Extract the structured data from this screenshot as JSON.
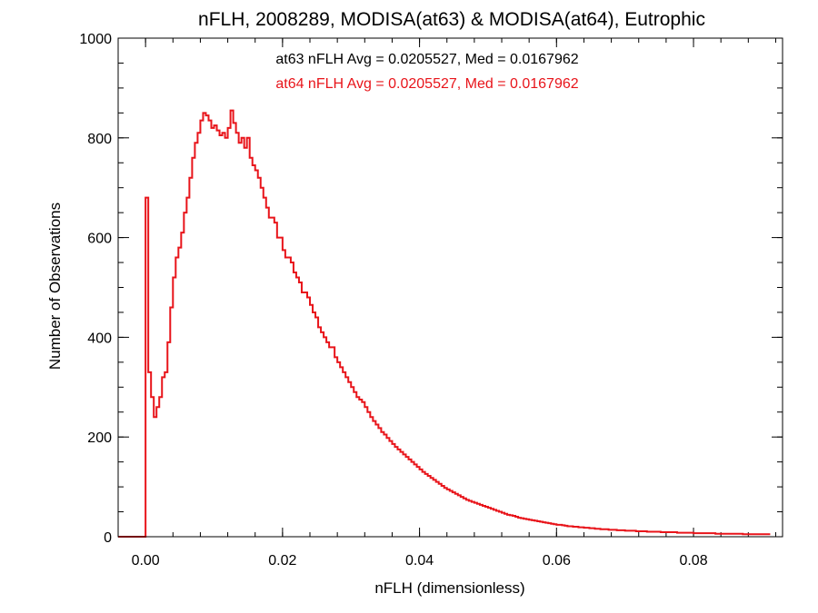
{
  "chart_data": {
    "type": "histogram",
    "title": "nFLH, 2008289, MODISA(at63) & MODISA(at64), Eutrophic",
    "xlabel": "nFLH (dimensionless)",
    "ylabel": "Number of Observations",
    "xlim": [
      -0.004,
      0.093
    ],
    "ylim": [
      0,
      1000
    ],
    "x_ticks": [
      {
        "value": 0.0,
        "label": "0.00"
      },
      {
        "value": 0.02,
        "label": "0.02"
      },
      {
        "value": 0.04,
        "label": "0.04"
      },
      {
        "value": 0.06,
        "label": "0.06"
      },
      {
        "value": 0.08,
        "label": "0.08"
      }
    ],
    "y_ticks": [
      {
        "value": 0,
        "label": "0"
      },
      {
        "value": 200,
        "label": "200"
      },
      {
        "value": 400,
        "label": "400"
      },
      {
        "value": 600,
        "label": "600"
      },
      {
        "value": 800,
        "label": "800"
      },
      {
        "value": 1000,
        "label": "1000"
      }
    ],
    "x_minor_step": 0.004,
    "y_minor_step": 50,
    "grid": false,
    "annotations": [
      {
        "text": "at63 nFLH Avg = 0.0205527, Med = 0.0167962",
        "color": "#000000"
      },
      {
        "text": "at64 nFLH Avg = 0.0205527, Med = 0.0167962",
        "color": "#e8141a"
      }
    ],
    "series": [
      {
        "color": "#e8141a",
        "bin_width": 0.0004,
        "step_x": [
          -0.004,
          0.0,
          0.0004,
          0.0008,
          0.0012,
          0.0016,
          0.002,
          0.0024,
          0.0028,
          0.0032,
          0.0036,
          0.004,
          0.0044,
          0.0048,
          0.0052,
          0.0056,
          0.006,
          0.0064,
          0.0068,
          0.0072,
          0.0076,
          0.008,
          0.0084,
          0.0088,
          0.0092,
          0.0096,
          0.01,
          0.0104,
          0.0108,
          0.0112,
          0.0116,
          0.012,
          0.0124,
          0.0128,
          0.0132,
          0.0136,
          0.014,
          0.0144,
          0.0148,
          0.0152,
          0.0156,
          0.016,
          0.0164,
          0.0168,
          0.0172,
          0.0176,
          0.018,
          0.0184,
          0.0188,
          0.0192,
          0.0196,
          0.02,
          0.0204,
          0.0208,
          0.0212,
          0.0216,
          0.022,
          0.0224,
          0.0228,
          0.0232,
          0.0236,
          0.024,
          0.0244,
          0.0248,
          0.0252,
          0.0256,
          0.026,
          0.0264,
          0.0268,
          0.0272,
          0.0276,
          0.028,
          0.0284,
          0.0288,
          0.0292,
          0.0296,
          0.03,
          0.0304,
          0.0308,
          0.0312,
          0.0316,
          0.032,
          0.0324,
          0.0328,
          0.0332,
          0.0336,
          0.034,
          0.0344,
          0.0348,
          0.0352,
          0.0356,
          0.036,
          0.0364,
          0.0368,
          0.0372,
          0.0376,
          0.038,
          0.0384,
          0.0388,
          0.0392,
          0.0396,
          0.04,
          0.0404,
          0.0408,
          0.0412,
          0.0416,
          0.042,
          0.0424,
          0.0428,
          0.0432,
          0.0436,
          0.044,
          0.0444,
          0.0448,
          0.0452,
          0.0456,
          0.046,
          0.0464,
          0.0468,
          0.0472,
          0.0476,
          0.048,
          0.0484,
          0.0488,
          0.0492,
          0.0496,
          0.05,
          0.0504,
          0.0508,
          0.0512,
          0.0516,
          0.052,
          0.0524,
          0.0528,
          0.0532,
          0.0536,
          0.054,
          0.0544,
          0.0548,
          0.0552,
          0.0556,
          0.056,
          0.0564,
          0.0568,
          0.0572,
          0.0576,
          0.058,
          0.0584,
          0.0588,
          0.0592,
          0.0596,
          0.06,
          0.0604,
          0.0608,
          0.0612,
          0.0616,
          0.062,
          0.0624,
          0.0628,
          0.0632,
          0.0636,
          0.064,
          0.0644,
          0.0648,
          0.0652,
          0.0656,
          0.066,
          0.0664,
          0.0668,
          0.0672,
          0.0676,
          0.068,
          0.0684,
          0.0688,
          0.0692,
          0.0696,
          0.07,
          0.0704,
          0.0708,
          0.0712,
          0.0716,
          0.072,
          0.0724,
          0.0728,
          0.0732,
          0.0736,
          0.074,
          0.0744,
          0.0748,
          0.0752,
          0.0756,
          0.076,
          0.0764,
          0.0768,
          0.0772,
          0.0776,
          0.078,
          0.0784,
          0.0788,
          0.0792,
          0.0796,
          0.08,
          0.0804,
          0.0808,
          0.0812,
          0.0816,
          0.082,
          0.0824,
          0.0828,
          0.0832,
          0.0836,
          0.084,
          0.0844,
          0.0848,
          0.0852,
          0.0856,
          0.086,
          0.0864,
          0.0868,
          0.0872,
          0.0876,
          0.088,
          0.0884,
          0.0888,
          0.0892,
          0.0896,
          0.09,
          0.0904,
          0.0908,
          0.0912,
          0.0916,
          0.092,
          0.0924,
          0.0928
        ],
        "step_y": [
          0,
          680,
          330,
          280,
          240,
          260,
          280,
          320,
          330,
          390,
          460,
          520,
          560,
          580,
          610,
          650,
          680,
          720,
          760,
          790,
          810,
          835,
          850,
          845,
          835,
          820,
          825,
          815,
          805,
          810,
          800,
          820,
          855,
          830,
          810,
          790,
          800,
          780,
          800,
          760,
          745,
          735,
          720,
          700,
          680,
          660,
          640,
          640,
          630,
          600,
          600,
          575,
          560,
          560,
          550,
          530,
          520,
          510,
          490,
          490,
          480,
          465,
          450,
          440,
          420,
          410,
          400,
          390,
          380,
          380,
          360,
          350,
          340,
          330,
          320,
          310,
          300,
          290,
          280,
          275,
          270,
          260,
          250,
          240,
          232,
          225,
          218,
          210,
          205,
          198,
          192,
          186,
          180,
          175,
          170,
          165,
          160,
          155,
          150,
          145,
          140,
          135,
          130,
          126,
          122,
          118,
          114,
          110,
          106,
          102,
          98,
          95,
          92,
          89,
          86,
          83,
          80,
          77,
          74,
          72,
          70,
          68,
          66,
          64,
          62,
          60,
          58,
          56,
          54,
          52,
          50,
          48,
          46,
          44,
          43,
          42,
          40,
          38,
          37,
          36,
          35,
          34,
          33,
          32,
          31,
          30,
          29,
          28,
          27,
          26,
          25,
          24,
          24,
          23,
          22,
          21,
          21,
          20,
          20,
          19,
          19,
          18,
          18,
          17,
          17,
          16,
          16,
          15,
          15,
          15,
          14,
          14,
          14,
          13,
          13,
          13,
          12,
          12,
          12,
          12,
          11,
          11,
          11,
          11,
          10,
          10,
          10,
          10,
          10,
          9,
          9,
          9,
          9,
          9,
          9,
          8,
          8,
          8,
          8,
          8,
          8,
          7,
          7,
          7,
          7,
          7,
          7,
          7,
          7,
          6,
          6,
          6,
          6,
          6,
          6,
          6,
          6,
          6,
          6,
          5,
          5,
          5,
          5,
          5,
          5,
          5,
          5,
          5,
          5
        ]
      }
    ]
  }
}
